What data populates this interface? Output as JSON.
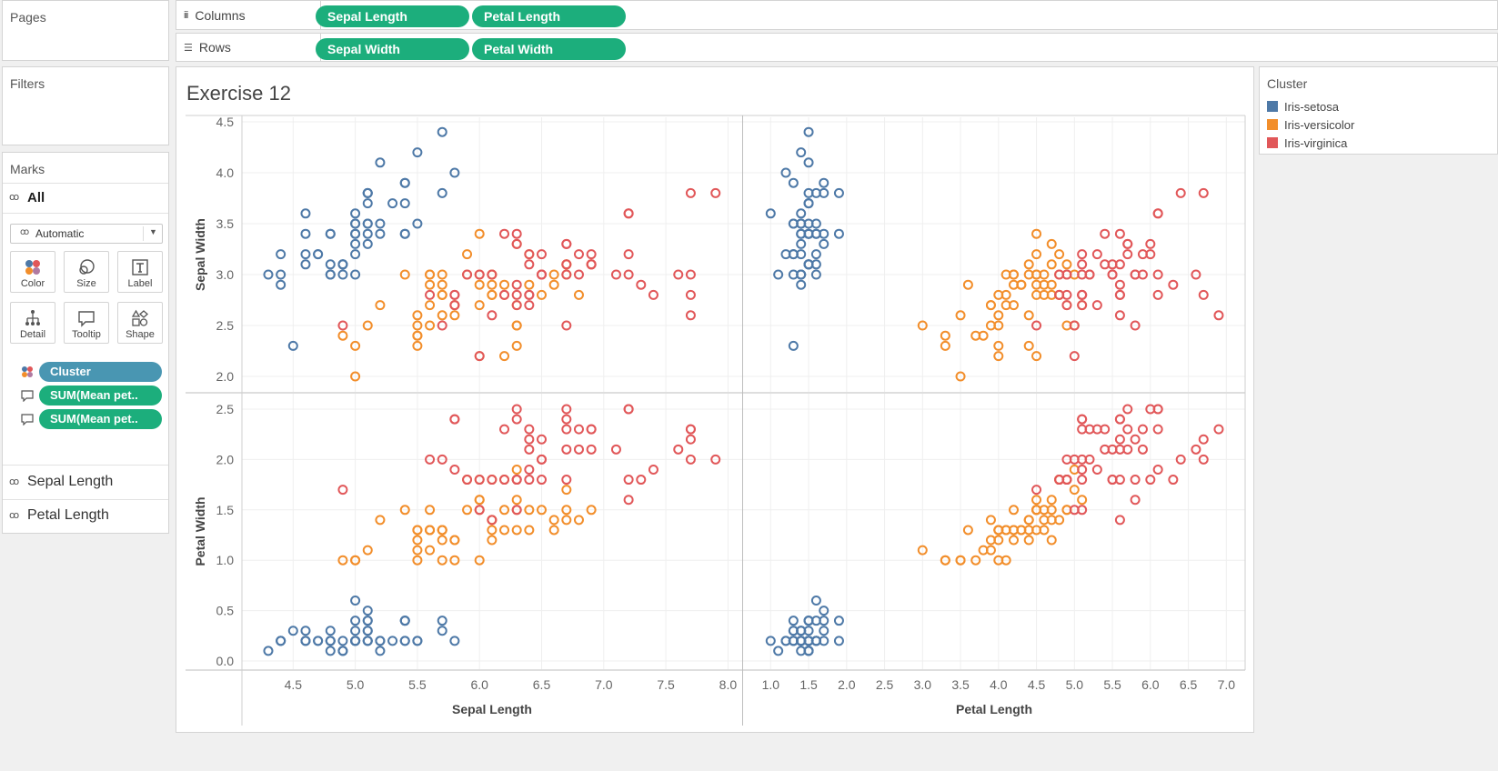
{
  "left_pane": {
    "pages_title": "Pages",
    "filters_title": "Filters",
    "marks": {
      "title": "Marks",
      "all_label": "All",
      "mark_type": "Automatic",
      "buttons": [
        "Color",
        "Size",
        "Label",
        "Detail",
        "Tooltip",
        "Shape"
      ],
      "fields": [
        {
          "label": "Cluster",
          "kind": "color"
        },
        {
          "label": "SUM(Mean pet..",
          "kind": "tooltip"
        },
        {
          "label": "SUM(Mean pet..",
          "kind": "tooltip"
        }
      ],
      "cards": [
        "Sepal Length",
        "Petal Length"
      ]
    }
  },
  "shelves": {
    "columns_label": "Columns",
    "rows_label": "Rows",
    "columns": [
      "Sepal Length",
      "Petal Length"
    ],
    "rows": [
      "Sepal Width",
      "Petal Width"
    ]
  },
  "sheet_title": "Exercise 12",
  "legend": {
    "title": "Cluster",
    "items": [
      {
        "name": "Iris-setosa",
        "color": "#4e79a7"
      },
      {
        "name": "Iris-versicolor",
        "color": "#f28e2b"
      },
      {
        "name": "Iris-virginica",
        "color": "#e15759"
      }
    ]
  },
  "colors": {
    "pill_green": "#1cae7c",
    "pill_teal": "#4996b2"
  },
  "chart_data": {
    "type": "scatter",
    "columns": [
      "Sepal Length",
      "Petal Length"
    ],
    "rows": [
      "Sepal Width",
      "Petal Width"
    ],
    "x_ticks": {
      "Sepal Length": [
        4.5,
        5.0,
        5.5,
        6.0,
        6.5,
        7.0,
        7.5,
        8.0
      ],
      "Petal Length": [
        1.0,
        1.5,
        2.0,
        2.5,
        3.0,
        3.5,
        4.0,
        4.5,
        5.0,
        5.5,
        6.0,
        6.5,
        7.0
      ]
    },
    "y_ticks": {
      "Sepal Width": [
        2.0,
        2.5,
        3.0,
        3.5,
        4.0,
        4.5
      ],
      "Petal Width": [
        0.0,
        0.5,
        1.0,
        1.5,
        2.0,
        2.5
      ]
    },
    "grid": true,
    "marker": "open-circle",
    "legend_position": "right",
    "series": [
      {
        "name": "Iris-setosa",
        "color": "#4e79a7",
        "points": [
          [
            5.1,
            3.5,
            1.4,
            0.2
          ],
          [
            4.9,
            3.0,
            1.4,
            0.2
          ],
          [
            4.7,
            3.2,
            1.3,
            0.2
          ],
          [
            4.6,
            3.1,
            1.5,
            0.2
          ],
          [
            5.0,
            3.6,
            1.4,
            0.2
          ],
          [
            5.4,
            3.9,
            1.7,
            0.4
          ],
          [
            4.6,
            3.4,
            1.4,
            0.3
          ],
          [
            5.0,
            3.4,
            1.5,
            0.2
          ],
          [
            4.4,
            2.9,
            1.4,
            0.2
          ],
          [
            4.9,
            3.1,
            1.5,
            0.1
          ],
          [
            5.4,
            3.7,
            1.5,
            0.2
          ],
          [
            4.8,
            3.4,
            1.6,
            0.2
          ],
          [
            4.8,
            3.0,
            1.4,
            0.1
          ],
          [
            4.3,
            3.0,
            1.1,
            0.1
          ],
          [
            5.8,
            4.0,
            1.2,
            0.2
          ],
          [
            5.7,
            4.4,
            1.5,
            0.4
          ],
          [
            5.4,
            3.9,
            1.3,
            0.4
          ],
          [
            5.1,
            3.5,
            1.4,
            0.3
          ],
          [
            5.7,
            3.8,
            1.7,
            0.3
          ],
          [
            5.1,
            3.8,
            1.5,
            0.3
          ],
          [
            5.4,
            3.4,
            1.7,
            0.2
          ],
          [
            5.1,
            3.7,
            1.5,
            0.4
          ],
          [
            4.6,
            3.6,
            1.0,
            0.2
          ],
          [
            5.1,
            3.3,
            1.7,
            0.5
          ],
          [
            4.8,
            3.4,
            1.9,
            0.2
          ],
          [
            5.0,
            3.0,
            1.6,
            0.2
          ],
          [
            5.0,
            3.4,
            1.6,
            0.4
          ],
          [
            5.2,
            3.5,
            1.5,
            0.2
          ],
          [
            5.2,
            3.4,
            1.4,
            0.2
          ],
          [
            4.7,
            3.2,
            1.6,
            0.2
          ],
          [
            4.8,
            3.1,
            1.6,
            0.2
          ],
          [
            5.4,
            3.4,
            1.5,
            0.4
          ],
          [
            5.2,
            4.1,
            1.5,
            0.1
          ],
          [
            5.5,
            4.2,
            1.4,
            0.2
          ],
          [
            4.9,
            3.1,
            1.5,
            0.1
          ],
          [
            5.0,
            3.2,
            1.2,
            0.2
          ],
          [
            5.5,
            3.5,
            1.3,
            0.2
          ],
          [
            4.9,
            3.1,
            1.5,
            0.1
          ],
          [
            4.4,
            3.0,
            1.3,
            0.2
          ],
          [
            5.1,
            3.4,
            1.5,
            0.2
          ],
          [
            5.0,
            3.5,
            1.3,
            0.3
          ],
          [
            4.5,
            2.3,
            1.3,
            0.3
          ],
          [
            4.4,
            3.2,
            1.3,
            0.2
          ],
          [
            5.0,
            3.5,
            1.6,
            0.6
          ],
          [
            5.1,
            3.8,
            1.9,
            0.4
          ],
          [
            4.8,
            3.0,
            1.4,
            0.3
          ],
          [
            5.1,
            3.8,
            1.6,
            0.2
          ],
          [
            4.6,
            3.2,
            1.4,
            0.2
          ],
          [
            5.3,
            3.7,
            1.5,
            0.2
          ],
          [
            5.0,
            3.3,
            1.4,
            0.2
          ]
        ]
      },
      {
        "name": "Iris-versicolor",
        "color": "#f28e2b",
        "points": [
          [
            6.4,
            3.2,
            4.5,
            1.5
          ],
          [
            6.9,
            3.1,
            4.9,
            1.5
          ],
          [
            5.5,
            2.3,
            4.0,
            1.3
          ],
          [
            6.5,
            2.8,
            4.6,
            1.5
          ],
          [
            5.7,
            2.8,
            4.5,
            1.3
          ],
          [
            6.3,
            3.3,
            4.7,
            1.6
          ],
          [
            4.9,
            2.4,
            3.3,
            1.0
          ],
          [
            6.6,
            2.9,
            4.6,
            1.3
          ],
          [
            5.2,
            2.7,
            3.9,
            1.4
          ],
          [
            5.0,
            2.0,
            3.5,
            1.0
          ],
          [
            5.9,
            3.0,
            4.2,
            1.5
          ],
          [
            6.0,
            2.2,
            4.0,
            1.0
          ],
          [
            6.1,
            2.9,
            4.7,
            1.4
          ],
          [
            5.6,
            2.9,
            3.6,
            1.3
          ],
          [
            6.7,
            3.1,
            4.4,
            1.4
          ],
          [
            5.6,
            3.0,
            4.5,
            1.5
          ],
          [
            5.8,
            2.7,
            4.1,
            1.0
          ],
          [
            6.2,
            2.2,
            4.5,
            1.5
          ],
          [
            5.6,
            2.5,
            3.9,
            1.1
          ],
          [
            6.1,
            2.8,
            4.0,
            1.3
          ],
          [
            6.3,
            2.5,
            4.9,
            1.5
          ],
          [
            6.1,
            2.8,
            4.7,
            1.2
          ],
          [
            6.4,
            2.9,
            4.3,
            1.3
          ],
          [
            6.6,
            3.0,
            4.4,
            1.4
          ],
          [
            6.8,
            2.8,
            4.8,
            1.4
          ],
          [
            6.0,
            2.9,
            4.5,
            1.5
          ],
          [
            5.7,
            2.6,
            3.5,
            1.0
          ],
          [
            5.5,
            2.4,
            3.8,
            1.1
          ],
          [
            5.5,
            2.4,
            3.7,
            1.0
          ],
          [
            5.8,
            2.7,
            3.9,
            1.2
          ],
          [
            5.4,
            3.0,
            4.5,
            1.5
          ],
          [
            6.0,
            3.4,
            4.5,
            1.6
          ],
          [
            6.7,
            3.1,
            4.7,
            1.5
          ],
          [
            6.3,
            2.3,
            4.4,
            1.3
          ],
          [
            5.6,
            3.0,
            4.1,
            1.3
          ],
          [
            5.5,
            2.5,
            4.0,
            1.3
          ],
          [
            5.5,
            2.6,
            4.4,
            1.2
          ],
          [
            6.1,
            3.0,
            4.6,
            1.4
          ],
          [
            5.8,
            2.6,
            4.0,
            1.2
          ],
          [
            5.0,
            2.3,
            3.3,
            1.0
          ],
          [
            5.6,
            2.7,
            4.2,
            1.3
          ],
          [
            5.7,
            3.0,
            4.2,
            1.2
          ],
          [
            5.7,
            2.9,
            4.2,
            1.3
          ],
          [
            6.2,
            2.9,
            4.3,
            1.3
          ],
          [
            5.1,
            2.5,
            3.0,
            1.1
          ],
          [
            5.7,
            2.8,
            4.1,
            1.3
          ],
          [
            6.7,
            3.0,
            5.0,
            1.7
          ],
          [
            5.9,
            3.2,
            4.8,
            1.8
          ],
          [
            6.0,
            2.7,
            5.1,
            1.6
          ],
          [
            6.3,
            2.5,
            5.0,
            1.9
          ],
          [
            6.1,
            3.0,
            4.9,
            1.8
          ],
          [
            6.0,
            3.0,
            4.8,
            1.8
          ],
          [
            6.2,
            2.8,
            4.8,
            1.8
          ],
          [
            6.3,
            2.7,
            4.9,
            1.8
          ]
        ]
      },
      {
        "name": "Iris-virginica",
        "color": "#e15759",
        "points": [
          [
            6.3,
            3.3,
            6.0,
            2.5
          ],
          [
            5.8,
            2.7,
            5.1,
            1.9
          ],
          [
            7.1,
            3.0,
            5.9,
            2.1
          ],
          [
            6.3,
            2.9,
            5.6,
            1.8
          ],
          [
            6.5,
            3.0,
            5.8,
            2.2
          ],
          [
            7.6,
            3.0,
            6.6,
            2.1
          ],
          [
            4.9,
            2.5,
            4.5,
            1.7
          ],
          [
            7.3,
            2.9,
            6.3,
            1.8
          ],
          [
            6.7,
            2.5,
            5.8,
            1.8
          ],
          [
            7.2,
            3.6,
            6.1,
            2.5
          ],
          [
            6.5,
            3.2,
            5.1,
            2.0
          ],
          [
            6.4,
            2.7,
            5.3,
            1.9
          ],
          [
            6.8,
            3.0,
            5.5,
            2.1
          ],
          [
            5.7,
            2.5,
            5.0,
            2.0
          ],
          [
            5.8,
            2.8,
            5.1,
            2.4
          ],
          [
            6.4,
            3.2,
            5.3,
            2.3
          ],
          [
            6.5,
            3.0,
            5.5,
            1.8
          ],
          [
            7.7,
            3.8,
            6.7,
            2.2
          ],
          [
            7.7,
            2.6,
            6.9,
            2.3
          ],
          [
            6.0,
            2.2,
            5.0,
            1.5
          ],
          [
            6.9,
            3.2,
            5.7,
            2.3
          ],
          [
            5.6,
            2.8,
            4.9,
            2.0
          ],
          [
            7.7,
            2.8,
            6.7,
            2.0
          ],
          [
            6.3,
            2.7,
            4.9,
            1.8
          ],
          [
            6.7,
            3.3,
            5.7,
            2.1
          ],
          [
            7.2,
            3.2,
            6.0,
            1.8
          ],
          [
            6.2,
            2.8,
            4.8,
            1.8
          ],
          [
            6.1,
            3.0,
            4.9,
            1.8
          ],
          [
            6.4,
            2.8,
            5.6,
            2.1
          ],
          [
            7.2,
            3.0,
            5.8,
            1.6
          ],
          [
            7.4,
            2.8,
            6.1,
            1.9
          ],
          [
            7.9,
            3.8,
            6.4,
            2.0
          ],
          [
            6.4,
            2.8,
            5.6,
            2.2
          ],
          [
            6.3,
            2.8,
            5.1,
            1.5
          ],
          [
            6.1,
            2.6,
            5.6,
            1.4
          ],
          [
            7.7,
            3.0,
            6.1,
            2.3
          ],
          [
            6.3,
            3.4,
            5.6,
            2.4
          ],
          [
            6.4,
            3.1,
            5.5,
            1.8
          ],
          [
            6.0,
            3.0,
            4.8,
            1.8
          ],
          [
            6.9,
            3.1,
            5.4,
            2.1
          ],
          [
            6.7,
            3.1,
            5.6,
            2.4
          ],
          [
            6.9,
            3.1,
            5.1,
            2.3
          ],
          [
            6.8,
            3.2,
            5.9,
            2.3
          ],
          [
            6.7,
            3.3,
            5.7,
            2.5
          ],
          [
            6.7,
            3.0,
            5.2,
            2.3
          ],
          [
            6.5,
            3.0,
            5.2,
            2.0
          ],
          [
            6.2,
            3.4,
            5.4,
            2.3
          ],
          [
            5.9,
            3.0,
            5.1,
            1.8
          ],
          [
            7.2,
            3.6,
            6.1,
            2.5
          ],
          [
            5.8,
            2.8,
            5.1,
            2.4
          ]
        ]
      }
    ],
    "point_fields": [
      "Sepal Length",
      "Sepal Width",
      "Petal Length",
      "Petal Width"
    ]
  }
}
